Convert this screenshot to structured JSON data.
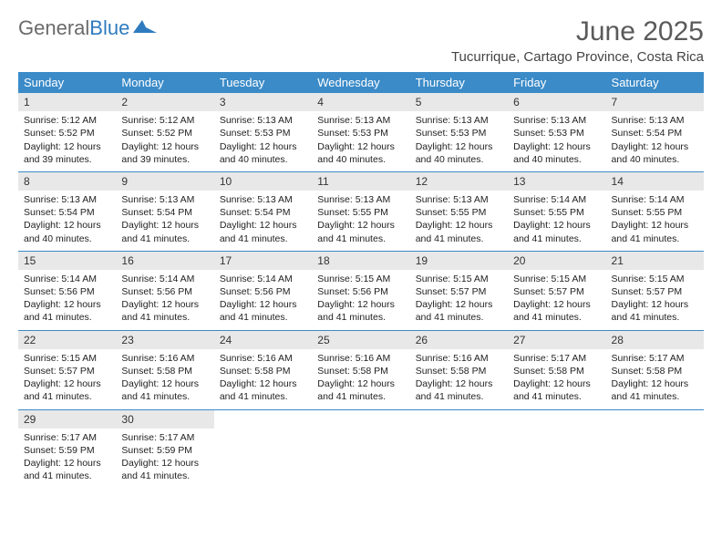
{
  "brand": {
    "part1": "General",
    "part2": "Blue"
  },
  "title": "June 2025",
  "location": "Tucurrique, Cartago Province, Costa Rica",
  "colors": {
    "header_bg": "#3b8bc8",
    "header_text": "#ffffff",
    "daynum_bg": "#e8e8e8",
    "week_divider": "#3b8bc8",
    "title_color": "#5a5a5a",
    "brand_gray": "#6a6a6a",
    "brand_blue": "#2f7bbf"
  },
  "day_names": [
    "Sunday",
    "Monday",
    "Tuesday",
    "Wednesday",
    "Thursday",
    "Friday",
    "Saturday"
  ],
  "weeks": [
    [
      {
        "n": "1",
        "sr": "5:12 AM",
        "ss": "5:52 PM",
        "dl": "12 hours and 39 minutes."
      },
      {
        "n": "2",
        "sr": "5:12 AM",
        "ss": "5:52 PM",
        "dl": "12 hours and 39 minutes."
      },
      {
        "n": "3",
        "sr": "5:13 AM",
        "ss": "5:53 PM",
        "dl": "12 hours and 40 minutes."
      },
      {
        "n": "4",
        "sr": "5:13 AM",
        "ss": "5:53 PM",
        "dl": "12 hours and 40 minutes."
      },
      {
        "n": "5",
        "sr": "5:13 AM",
        "ss": "5:53 PM",
        "dl": "12 hours and 40 minutes."
      },
      {
        "n": "6",
        "sr": "5:13 AM",
        "ss": "5:53 PM",
        "dl": "12 hours and 40 minutes."
      },
      {
        "n": "7",
        "sr": "5:13 AM",
        "ss": "5:54 PM",
        "dl": "12 hours and 40 minutes."
      }
    ],
    [
      {
        "n": "8",
        "sr": "5:13 AM",
        "ss": "5:54 PM",
        "dl": "12 hours and 40 minutes."
      },
      {
        "n": "9",
        "sr": "5:13 AM",
        "ss": "5:54 PM",
        "dl": "12 hours and 41 minutes."
      },
      {
        "n": "10",
        "sr": "5:13 AM",
        "ss": "5:54 PM",
        "dl": "12 hours and 41 minutes."
      },
      {
        "n": "11",
        "sr": "5:13 AM",
        "ss": "5:55 PM",
        "dl": "12 hours and 41 minutes."
      },
      {
        "n": "12",
        "sr": "5:13 AM",
        "ss": "5:55 PM",
        "dl": "12 hours and 41 minutes."
      },
      {
        "n": "13",
        "sr": "5:14 AM",
        "ss": "5:55 PM",
        "dl": "12 hours and 41 minutes."
      },
      {
        "n": "14",
        "sr": "5:14 AM",
        "ss": "5:55 PM",
        "dl": "12 hours and 41 minutes."
      }
    ],
    [
      {
        "n": "15",
        "sr": "5:14 AM",
        "ss": "5:56 PM",
        "dl": "12 hours and 41 minutes."
      },
      {
        "n": "16",
        "sr": "5:14 AM",
        "ss": "5:56 PM",
        "dl": "12 hours and 41 minutes."
      },
      {
        "n": "17",
        "sr": "5:14 AM",
        "ss": "5:56 PM",
        "dl": "12 hours and 41 minutes."
      },
      {
        "n": "18",
        "sr": "5:15 AM",
        "ss": "5:56 PM",
        "dl": "12 hours and 41 minutes."
      },
      {
        "n": "19",
        "sr": "5:15 AM",
        "ss": "5:57 PM",
        "dl": "12 hours and 41 minutes."
      },
      {
        "n": "20",
        "sr": "5:15 AM",
        "ss": "5:57 PM",
        "dl": "12 hours and 41 minutes."
      },
      {
        "n": "21",
        "sr": "5:15 AM",
        "ss": "5:57 PM",
        "dl": "12 hours and 41 minutes."
      }
    ],
    [
      {
        "n": "22",
        "sr": "5:15 AM",
        "ss": "5:57 PM",
        "dl": "12 hours and 41 minutes."
      },
      {
        "n": "23",
        "sr": "5:16 AM",
        "ss": "5:58 PM",
        "dl": "12 hours and 41 minutes."
      },
      {
        "n": "24",
        "sr": "5:16 AM",
        "ss": "5:58 PM",
        "dl": "12 hours and 41 minutes."
      },
      {
        "n": "25",
        "sr": "5:16 AM",
        "ss": "5:58 PM",
        "dl": "12 hours and 41 minutes."
      },
      {
        "n": "26",
        "sr": "5:16 AM",
        "ss": "5:58 PM",
        "dl": "12 hours and 41 minutes."
      },
      {
        "n": "27",
        "sr": "5:17 AM",
        "ss": "5:58 PM",
        "dl": "12 hours and 41 minutes."
      },
      {
        "n": "28",
        "sr": "5:17 AM",
        "ss": "5:58 PM",
        "dl": "12 hours and 41 minutes."
      }
    ],
    [
      {
        "n": "29",
        "sr": "5:17 AM",
        "ss": "5:59 PM",
        "dl": "12 hours and 41 minutes."
      },
      {
        "n": "30",
        "sr": "5:17 AM",
        "ss": "5:59 PM",
        "dl": "12 hours and 41 minutes."
      },
      null,
      null,
      null,
      null,
      null
    ]
  ],
  "labels": {
    "sunrise": "Sunrise: ",
    "sunset": "Sunset: ",
    "daylight": "Daylight: "
  }
}
